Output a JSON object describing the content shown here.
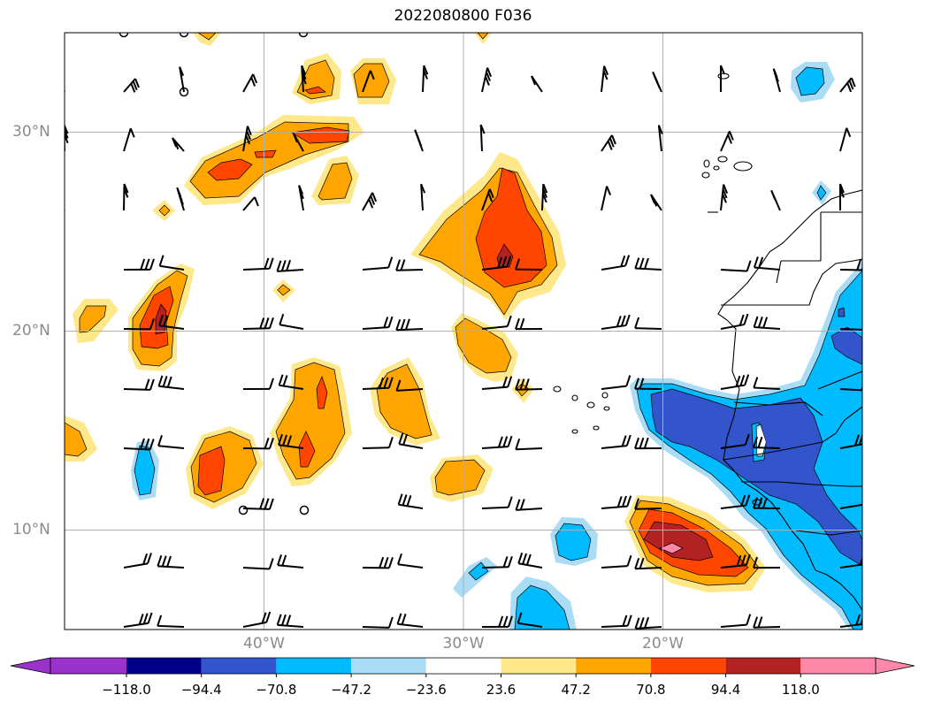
{
  "title": "2022080800 F036",
  "map": {
    "lon_range": [
      -50,
      -10
    ],
    "lat_range": [
      5,
      35
    ],
    "lat_labels": [
      {
        "value": 30,
        "text": "30°N"
      },
      {
        "value": 20,
        "text": "20°N"
      },
      {
        "value": 10,
        "text": "10°N"
      }
    ],
    "lon_labels": [
      {
        "value": -40,
        "text": "40°W"
      },
      {
        "value": -30,
        "text": "30°W"
      },
      {
        "value": -20,
        "text": "20°W"
      }
    ],
    "gridlines": true
  },
  "colorbar": {
    "ticks": [
      "−118.0",
      "−94.4",
      "−70.8",
      "−47.2",
      "−23.6",
      "23.6",
      "47.2",
      "70.8",
      "94.4",
      "118.0"
    ],
    "colors": [
      "#9933cc",
      "#000088",
      "#3355cc",
      "#00bbff",
      "#aaddf5",
      "#ffffff",
      "#ffe88a",
      "#ffa500",
      "#ff4500",
      "#b22222",
      "#ff88aa"
    ],
    "extend": "both"
  },
  "colors": {
    "yellow": "#ffe88a",
    "orange": "#ffa500",
    "red": "#ff4500",
    "darkred": "#b22222",
    "pink": "#ff88aa",
    "lightblue": "#aaddf5",
    "blue": "#00bbff",
    "midblue": "#3355cc"
  }
}
